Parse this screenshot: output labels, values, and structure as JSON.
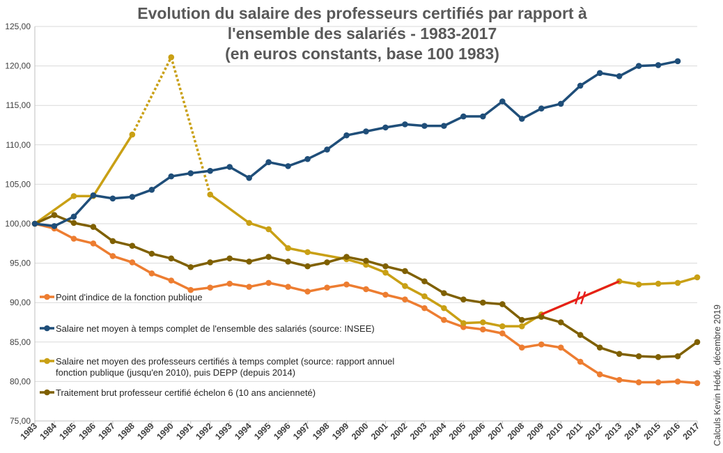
{
  "chart_data": {
    "type": "line",
    "title": [
      "Evolution du salaire des professeurs certifiés par rapport à",
      "l'ensemble des salariés -  1983-2017",
      "(en euros constants, base 100 1983)"
    ],
    "x": [
      "1983",
      "1984",
      "1985",
      "1986",
      "1987",
      "1988",
      "1989",
      "1990",
      "1991",
      "1992",
      "1993",
      "1994",
      "1995",
      "1996",
      "1997",
      "1998",
      "1999",
      "2000",
      "2001",
      "2002",
      "2003",
      "2004",
      "2005",
      "2006",
      "2007",
      "2008",
      "2009",
      "2010",
      "2011",
      "2012",
      "2013",
      "2014",
      "2015",
      "2016",
      "2017"
    ],
    "ylim": [
      75,
      125
    ],
    "yticks": [
      "75,00",
      "80,00",
      "85,00",
      "90,00",
      "95,00",
      "100,00",
      "105,00",
      "110,00",
      "115,00",
      "120,00",
      "125,00"
    ],
    "grid": true,
    "legend_position": "inside-bottom-left",
    "series": [
      {
        "name": "Point d'indice de la fonction publique",
        "color": "#ED7D31",
        "values": [
          100,
          99.4,
          98.1,
          97.5,
          95.9,
          95.1,
          93.7,
          92.8,
          91.6,
          91.9,
          92.4,
          92.0,
          92.5,
          92.0,
          91.4,
          91.9,
          92.3,
          91.7,
          91.0,
          90.4,
          89.3,
          87.8,
          86.9,
          86.6,
          86.1,
          84.3,
          84.7,
          84.3,
          82.5,
          80.9,
          80.2,
          79.9,
          79.9,
          80.0,
          79.8
        ]
      },
      {
        "name": "Salaire net moyen à temps complet de l'ensemble des salariés (source: INSEE)",
        "color": "#1F4E79",
        "values": [
          100,
          99.7,
          100.9,
          103.6,
          103.2,
          103.4,
          104.3,
          106.0,
          106.4,
          106.7,
          107.2,
          105.8,
          107.8,
          107.3,
          108.2,
          109.4,
          111.2,
          111.7,
          112.2,
          112.6,
          112.4,
          112.4,
          113.6,
          113.6,
          115.5,
          113.3,
          114.6,
          115.2,
          117.5,
          119.1,
          118.7,
          120.0,
          120.1,
          120.6,
          null
        ]
      },
      {
        "name": "Salaire net moyen des professeurs certifiés à temps complet (source: rapport annuel fonction publique (jusqu'en 2010), puis DEPP (depuis 2014)",
        "name_lines": [
          "Salaire net moyen des professeurs certifiés à temps complet (source: rapport annuel",
          "fonction publique (jusqu'en 2010), puis DEPP (depuis 2014)"
        ],
        "color": "#C9A015",
        "values": [
          100,
          null,
          103.5,
          103.5,
          null,
          111.3,
          null,
          121.1,
          null,
          103.7,
          null,
          100.1,
          99.3,
          96.9,
          96.4,
          null,
          95.5,
          94.8,
          93.8,
          92.1,
          90.8,
          89.3,
          87.4,
          87.5,
          87.0,
          87.0,
          88.5,
          null,
          null,
          null,
          92.7,
          92.3,
          92.4,
          92.5,
          93.2
        ],
        "dotted_segments": [
          [
            "1988",
            "1990"
          ],
          [
            "1990",
            "1992"
          ]
        ]
      },
      {
        "name": "Traitement brut professeur certifié échelon 6 (10 ans ancienneté)",
        "color": "#7F6000",
        "values": [
          100,
          101.1,
          100.1,
          99.6,
          97.8,
          97.2,
          96.2,
          95.6,
          94.5,
          95.1,
          95.6,
          95.2,
          95.8,
          95.2,
          94.6,
          95.1,
          95.8,
          95.3,
          94.6,
          94.0,
          92.7,
          91.2,
          90.4,
          90.0,
          89.8,
          87.8,
          88.2,
          87.5,
          85.9,
          84.3,
          83.5,
          83.2,
          83.1,
          83.2,
          85.0
        ]
      }
    ],
    "annotations": [
      {
        "type": "break-line",
        "color": "#E81C1C",
        "from": [
          "2009",
          88.5
        ],
        "to": [
          "2013",
          92.7
        ],
        "break_mark_at": "2011"
      }
    ]
  },
  "credit": "Calculs Kevin Hédé, décembre 2019"
}
